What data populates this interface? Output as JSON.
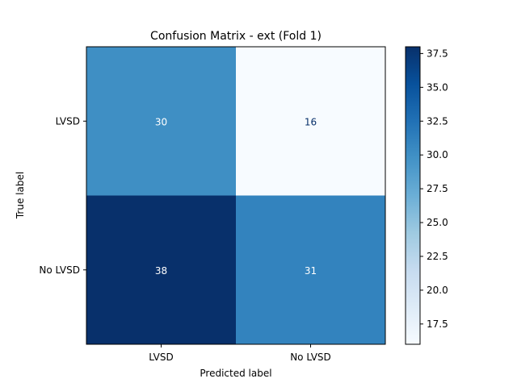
{
  "chart_data": {
    "type": "heatmap",
    "title": "Confusion Matrix - ext (Fold 1)",
    "xlabel": "Predicted label",
    "ylabel": "True label",
    "x_categories": [
      "LVSD",
      "No LVSD"
    ],
    "y_categories": [
      "LVSD",
      "No LVSD"
    ],
    "values": [
      [
        30,
        16
      ],
      [
        38,
        31
      ]
    ],
    "colormap": "Blues",
    "colorbar": {
      "range": [
        16,
        38
      ],
      "ticks": [
        17.5,
        20.0,
        22.5,
        25.0,
        27.5,
        30.0,
        32.5,
        35.0,
        37.5
      ],
      "tick_labels": [
        "17.5",
        "20.0",
        "22.5",
        "25.0",
        "27.5",
        "30.0",
        "32.5",
        "35.0",
        "37.5"
      ]
    },
    "grid": false
  }
}
